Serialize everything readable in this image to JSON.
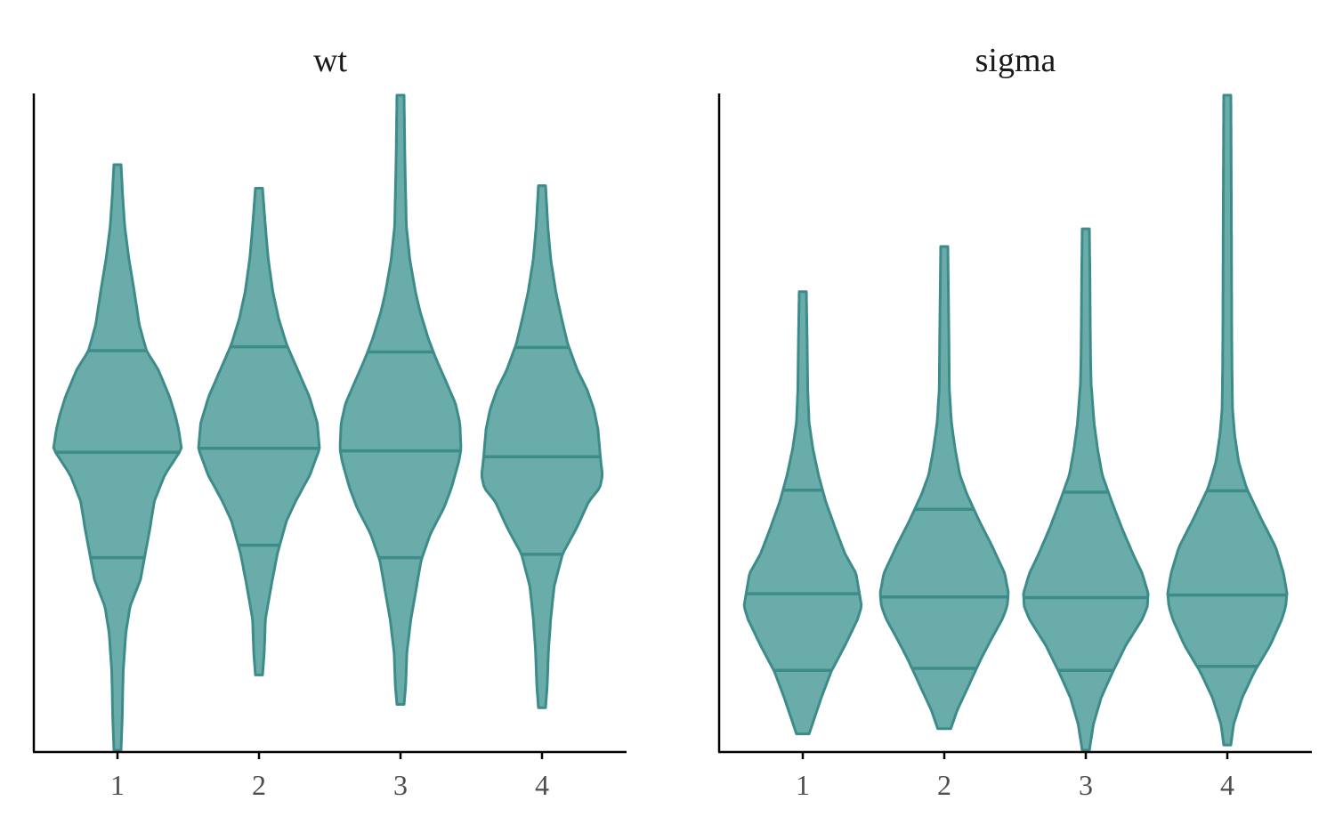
{
  "chart_data": [
    {
      "type": "violin",
      "title": "wt",
      "xlabel": "",
      "ylabel": "",
      "categories": [
        "1",
        "2",
        "3",
        "4"
      ],
      "ylim": [
        0,
        1
      ],
      "y_axis_ticks": "none",
      "grid": false,
      "legend": "none",
      "fill_color": "#6aacaa",
      "line_color": "#3d8c8a",
      "violins": [
        {
          "category": "1",
          "ymin": 0.0,
          "ymax": 0.894,
          "quantiles": {
            "q25": 0.294,
            "median": 0.455,
            "q75": 0.61
          },
          "profile": [
            [
              0.0,
              0.0
            ],
            [
              0.05,
              0.02
            ],
            [
              0.12,
              0.035
            ],
            [
              0.18,
              0.08
            ],
            [
              0.22,
              0.15
            ],
            [
              0.26,
              0.32
            ],
            [
              0.3,
              0.4
            ],
            [
              0.34,
              0.48
            ],
            [
              0.38,
              0.55
            ],
            [
              0.42,
              0.72
            ],
            [
              0.44,
              0.86
            ],
            [
              0.46,
              1.0
            ],
            [
              0.49,
              0.95
            ],
            [
              0.51,
              0.9
            ],
            [
              0.54,
              0.8
            ],
            [
              0.58,
              0.62
            ],
            [
              0.61,
              0.42
            ],
            [
              0.65,
              0.3
            ],
            [
              0.7,
              0.22
            ],
            [
              0.75,
              0.13
            ],
            [
              0.8,
              0.06
            ],
            [
              0.85,
              0.025
            ],
            [
              0.894,
              0.0
            ]
          ]
        },
        {
          "category": "2",
          "ymin": 0.115,
          "ymax": 0.858,
          "quantiles": {
            "q25": 0.313,
            "median": 0.461,
            "q75": 0.616
          },
          "profile": [
            [
              0.115,
              0.0
            ],
            [
              0.15,
              0.03
            ],
            [
              0.2,
              0.05
            ],
            [
              0.25,
              0.15
            ],
            [
              0.3,
              0.26
            ],
            [
              0.35,
              0.42
            ],
            [
              0.38,
              0.58
            ],
            [
              0.42,
              0.83
            ],
            [
              0.46,
              1.0
            ],
            [
              0.5,
              0.96
            ],
            [
              0.54,
              0.82
            ],
            [
              0.58,
              0.62
            ],
            [
              0.62,
              0.42
            ],
            [
              0.66,
              0.28
            ],
            [
              0.7,
              0.18
            ],
            [
              0.75,
              0.1
            ],
            [
              0.8,
              0.05
            ],
            [
              0.858,
              0.0
            ]
          ]
        },
        {
          "category": "3",
          "ymin": 0.07,
          "ymax": 1.0,
          "quantiles": {
            "q25": 0.294,
            "median": 0.457,
            "q75": 0.608
          },
          "profile": [
            [
              0.07,
              0.0
            ],
            [
              0.1,
              0.03
            ],
            [
              0.15,
              0.05
            ],
            [
              0.2,
              0.12
            ],
            [
              0.25,
              0.22
            ],
            [
              0.29,
              0.3
            ],
            [
              0.33,
              0.46
            ],
            [
              0.37,
              0.7
            ],
            [
              0.4,
              0.83
            ],
            [
              0.44,
              0.96
            ],
            [
              0.46,
              1.0
            ],
            [
              0.5,
              0.98
            ],
            [
              0.53,
              0.9
            ],
            [
              0.56,
              0.75
            ],
            [
              0.6,
              0.55
            ],
            [
              0.63,
              0.42
            ],
            [
              0.67,
              0.28
            ],
            [
              0.7,
              0.2
            ],
            [
              0.75,
              0.1
            ],
            [
              0.8,
              0.04
            ],
            [
              0.9,
              0.015
            ],
            [
              1.0,
              0.0
            ]
          ]
        },
        {
          "category": "4",
          "ymin": 0.065,
          "ymax": 0.862,
          "quantiles": {
            "q25": 0.299,
            "median": 0.448,
            "q75": 0.615
          },
          "profile": [
            [
              0.065,
              0.0
            ],
            [
              0.1,
              0.03
            ],
            [
              0.15,
              0.05
            ],
            [
              0.2,
              0.09
            ],
            [
              0.25,
              0.15
            ],
            [
              0.3,
              0.3
            ],
            [
              0.34,
              0.55
            ],
            [
              0.38,
              0.76
            ],
            [
              0.4,
              0.95
            ],
            [
              0.42,
              1.0
            ],
            [
              0.44,
              0.97
            ],
            [
              0.46,
              0.95
            ],
            [
              0.49,
              0.92
            ],
            [
              0.52,
              0.85
            ],
            [
              0.55,
              0.73
            ],
            [
              0.58,
              0.56
            ],
            [
              0.62,
              0.39
            ],
            [
              0.66,
              0.28
            ],
            [
              0.7,
              0.18
            ],
            [
              0.75,
              0.09
            ],
            [
              0.8,
              0.04
            ],
            [
              0.862,
              0.0
            ]
          ]
        }
      ]
    },
    {
      "type": "violin",
      "title": "sigma",
      "xlabel": "",
      "ylabel": "",
      "categories": [
        "1",
        "2",
        "3",
        "4"
      ],
      "ylim": [
        0,
        1
      ],
      "y_axis_ticks": "none",
      "grid": false,
      "legend": "none",
      "fill_color": "#6aacaa",
      "line_color": "#3d8c8a",
      "violins": [
        {
          "category": "1",
          "ymin": 0.025,
          "ymax": 0.7,
          "quantiles": {
            "q25": 0.122,
            "median": 0.239,
            "q75": 0.397
          },
          "profile": [
            [
              0.025,
              0.05
            ],
            [
              0.05,
              0.15
            ],
            [
              0.08,
              0.27
            ],
            [
              0.12,
              0.45
            ],
            [
              0.16,
              0.7
            ],
            [
              0.2,
              0.93
            ],
            [
              0.22,
              1.0
            ],
            [
              0.24,
              0.96
            ],
            [
              0.27,
              0.9
            ],
            [
              0.3,
              0.7
            ],
            [
              0.34,
              0.52
            ],
            [
              0.38,
              0.35
            ],
            [
              0.42,
              0.22
            ],
            [
              0.46,
              0.12
            ],
            [
              0.5,
              0.05
            ],
            [
              0.55,
              0.025
            ],
            [
              0.62,
              0.015
            ],
            [
              0.7,
              0.0
            ]
          ]
        },
        {
          "category": "2",
          "ymin": 0.033,
          "ymax": 0.769,
          "quantiles": {
            "q25": 0.125,
            "median": 0.234,
            "q75": 0.368
          },
          "profile": [
            [
              0.033,
              0.05
            ],
            [
              0.06,
              0.15
            ],
            [
              0.1,
              0.35
            ],
            [
              0.14,
              0.55
            ],
            [
              0.17,
              0.72
            ],
            [
              0.2,
              0.9
            ],
            [
              0.22,
              0.98
            ],
            [
              0.24,
              1.0
            ],
            [
              0.27,
              0.94
            ],
            [
              0.31,
              0.74
            ],
            [
              0.35,
              0.52
            ],
            [
              0.39,
              0.32
            ],
            [
              0.42,
              0.2
            ],
            [
              0.46,
              0.12
            ],
            [
              0.5,
              0.06
            ],
            [
              0.55,
              0.025
            ],
            [
              0.65,
              0.015
            ],
            [
              0.769,
              0.0
            ]
          ]
        },
        {
          "category": "3",
          "ymin": 0.0,
          "ymax": 0.796,
          "quantiles": {
            "q25": 0.122,
            "median": 0.233,
            "q75": 0.394
          },
          "profile": [
            [
              0.0,
              0.0
            ],
            [
              0.04,
              0.07
            ],
            [
              0.08,
              0.2
            ],
            [
              0.12,
              0.4
            ],
            [
              0.16,
              0.62
            ],
            [
              0.2,
              0.9
            ],
            [
              0.22,
              0.99
            ],
            [
              0.24,
              1.0
            ],
            [
              0.27,
              0.9
            ],
            [
              0.3,
              0.74
            ],
            [
              0.34,
              0.55
            ],
            [
              0.38,
              0.38
            ],
            [
              0.42,
              0.22
            ],
            [
              0.46,
              0.14
            ],
            [
              0.5,
              0.08
            ],
            [
              0.56,
              0.03
            ],
            [
              0.6,
              0.02
            ],
            [
              0.65,
              0.015
            ],
            [
              0.72,
              0.01
            ],
            [
              0.796,
              0.0
            ]
          ]
        },
        {
          "category": "4",
          "ymin": 0.008,
          "ymax": 1.0,
          "quantiles": {
            "q25": 0.128,
            "median": 0.237,
            "q75": 0.396
          },
          "profile": [
            [
              0.008,
              0.0
            ],
            [
              0.04,
              0.05
            ],
            [
              0.08,
              0.2
            ],
            [
              0.12,
              0.42
            ],
            [
              0.16,
              0.7
            ],
            [
              0.2,
              0.91
            ],
            [
              0.22,
              0.98
            ],
            [
              0.24,
              1.0
            ],
            [
              0.27,
              0.94
            ],
            [
              0.31,
              0.8
            ],
            [
              0.35,
              0.56
            ],
            [
              0.4,
              0.28
            ],
            [
              0.44,
              0.14
            ],
            [
              0.48,
              0.07
            ],
            [
              0.52,
              0.03
            ],
            [
              0.58,
              0.02
            ],
            [
              0.65,
              0.015
            ],
            [
              0.8,
              0.01
            ],
            [
              1.0,
              0.0
            ]
          ]
        }
      ]
    }
  ]
}
